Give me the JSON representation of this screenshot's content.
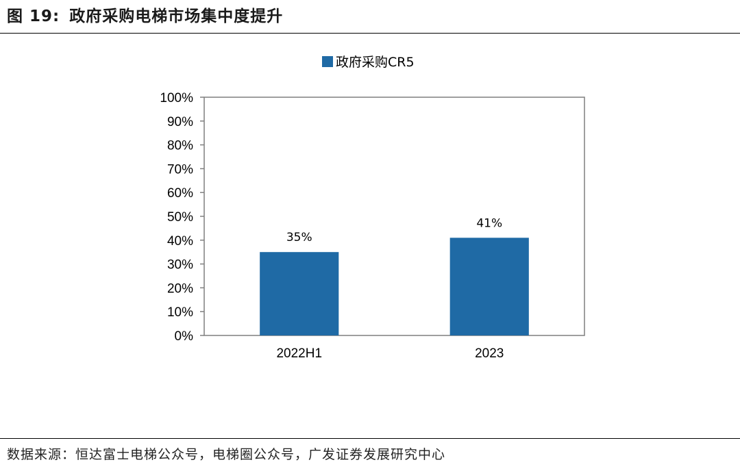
{
  "figure": {
    "number": "图 19:",
    "title": "政府采购电梯市场集中度提升"
  },
  "source": "数据来源：恒达富士电梯公众号，电梯圈公众号，广发证券发展研究中心",
  "chart_data": {
    "type": "bar",
    "categories": [
      "2022H1",
      "2023"
    ],
    "series": [
      {
        "name": "政府采购CR5",
        "values": [
          35,
          41
        ],
        "labels": [
          "35%",
          "41%"
        ],
        "color": "#1f6aa5"
      }
    ],
    "y_ticks": [
      "0%",
      "10%",
      "20%",
      "30%",
      "40%",
      "50%",
      "60%",
      "70%",
      "80%",
      "90%",
      "100%"
    ],
    "ylim": [
      0,
      100
    ],
    "legend_position": "top-center",
    "grid": false
  }
}
